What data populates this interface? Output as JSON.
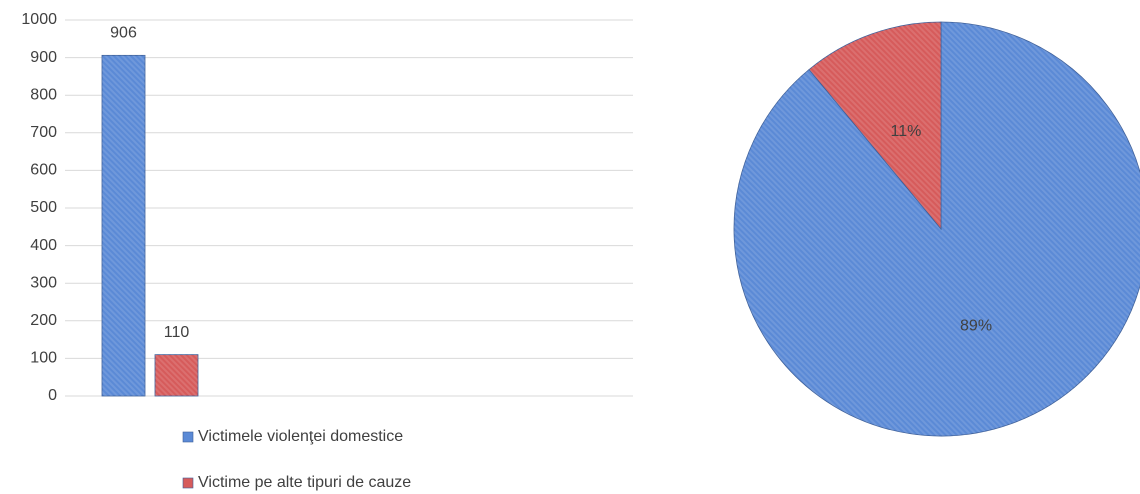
{
  "chart_data": [
    {
      "type": "bar",
      "categories": [
        null
      ],
      "series": [
        {
          "name": "Victimele violenţei domestice",
          "color": "#5b8ad6",
          "values": [
            906
          ]
        },
        {
          "name": "Victime pe alte tipuri de cauze",
          "color": "#d65b5b",
          "values": [
            110
          ]
        }
      ],
      "ylim": [
        0,
        1000
      ],
      "yticks": [
        0,
        100,
        200,
        300,
        400,
        500,
        600,
        700,
        800,
        900,
        1000
      ],
      "grid": true,
      "legend": "bottom"
    },
    {
      "type": "pie",
      "values": [
        89,
        11
      ],
      "value_labels": [
        "89%",
        "11%"
      ],
      "colors": [
        "#5b8ad6",
        "#d65b5b"
      ]
    }
  ]
}
